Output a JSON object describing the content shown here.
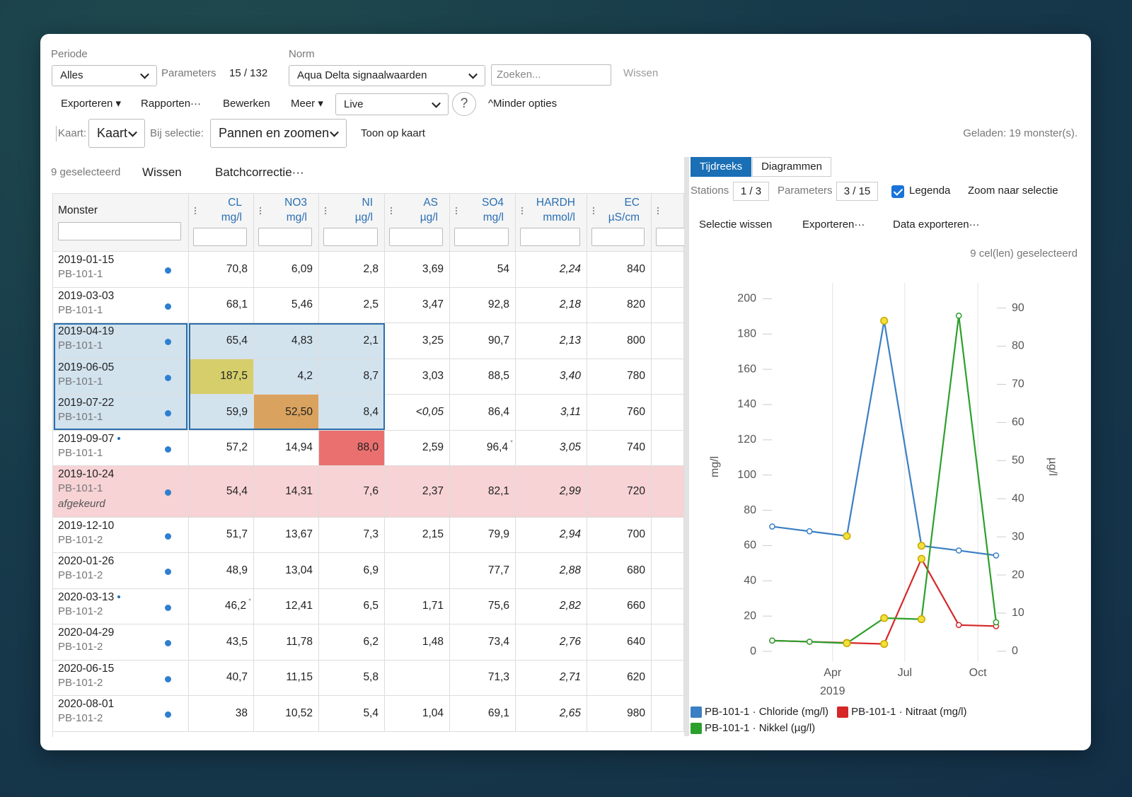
{
  "toolbar": {
    "periode_label": "Periode",
    "periode_value": "Alles",
    "parameters_label": "Parameters",
    "parameters_count": "15 / 132",
    "norm_label": "Norm",
    "norm_value": "Aqua Delta signaalwaarden",
    "search_placeholder": "Zoeken...",
    "search_clear": "Wissen",
    "menu": [
      "Exporteren ▾",
      "Rapporten···",
      "Bewerken",
      "Meer ▾"
    ],
    "mode": "Live",
    "help": "?",
    "less_options": "^Minder opties",
    "map_label": "Kaart:",
    "map_value": "Kaart",
    "selection_label": "Bij selectie:",
    "selection_value": "Pannen en zoomen",
    "show_on_map": "Toon op kaart",
    "loaded": "Geladen: 19 monster(s)."
  },
  "table_toolbar": {
    "selected": "9 geselecteerd",
    "clear": "Wissen",
    "batch": "Batchcorrectie···"
  },
  "table": {
    "first_column": "Monster",
    "columns": [
      {
        "name": "CL",
        "unit": "mg/l",
        "selected": true
      },
      {
        "name": "NO3",
        "unit": "mg/l",
        "selected": true
      },
      {
        "name": "NI",
        "unit": "µg/l",
        "selected": true
      },
      {
        "name": "AS",
        "unit": "µg/l"
      },
      {
        "name": "SO4",
        "unit": "mg/l"
      },
      {
        "name": "HARDH",
        "unit": "mmol/l",
        "italic": true
      },
      {
        "name": "EC",
        "unit": "µS/cm"
      }
    ],
    "rows": [
      {
        "date": "2019-01-15",
        "station": "PB-101-1",
        "cells": [
          "70,8",
          "6,09",
          "2,8",
          "3,69",
          "54",
          "2,24",
          "840"
        ]
      },
      {
        "date": "2019-03-03",
        "station": "PB-101-1",
        "cells": [
          "68,1",
          "5,46",
          "2,5",
          "3,47",
          "92,8",
          "2,18",
          "820"
        ]
      },
      {
        "date": "2019-04-19",
        "station": "PB-101-1",
        "selected": true,
        "cells": [
          "65,4",
          "4,83",
          "2,1",
          "3,25",
          "90,7",
          "2,13",
          "800"
        ]
      },
      {
        "date": "2019-06-05",
        "station": "PB-101-1",
        "selected": true,
        "cells": [
          {
            "text": "187,5",
            "status": "warn"
          },
          "4,2",
          "8,7",
          "3,03",
          "88,5",
          "3,40",
          "780"
        ]
      },
      {
        "date": "2019-07-22",
        "station": "PB-101-1",
        "selected": true,
        "cells": [
          "59,9",
          {
            "text": "52,50",
            "status": "alert"
          },
          "8,4",
          {
            "text": "<0,05",
            "italic": true
          },
          "86,4",
          "3,11",
          "760"
        ]
      },
      {
        "date": "2019-09-07",
        "station": "PB-101-1",
        "flagged": true,
        "cells": [
          "57,2",
          "14,94",
          {
            "text": "88,0",
            "status": "critical"
          },
          "2,59",
          {
            "text": "96,4",
            "mark": "*"
          },
          "3,05",
          "740"
        ]
      },
      {
        "date": "2019-10-24",
        "station": "PB-101-1",
        "status": "rejected",
        "note": "afgekeurd",
        "cells": [
          "54,4",
          "14,31",
          "7,6",
          "2,37",
          "82,1",
          "2,99",
          "720"
        ]
      },
      {
        "date": "2019-12-10",
        "station": "PB-101-2",
        "cells": [
          "51,7",
          "13,67",
          "7,3",
          "2,15",
          "79,9",
          "2,94",
          "700"
        ]
      },
      {
        "date": "2020-01-26",
        "station": "PB-101-2",
        "cells": [
          "48,9",
          "13,04",
          "6,9",
          null,
          "77,7",
          "2,88",
          "680"
        ]
      },
      {
        "date": "2020-03-13",
        "station": "PB-101-2",
        "flagged": true,
        "cells": [
          {
            "text": "46,2",
            "mark": "*"
          },
          "12,41",
          "6,5",
          "1,71",
          "75,6",
          "2,82",
          "660"
        ]
      },
      {
        "date": "2020-04-29",
        "station": "PB-101-2",
        "cells": [
          "43,5",
          "11,78",
          "6,2",
          "1,48",
          "73,4",
          "2,76",
          "640"
        ]
      },
      {
        "date": "2020-06-15",
        "station": "PB-101-2",
        "cells": [
          "40,7",
          "11,15",
          "5,8",
          null,
          "71,3",
          "2,71",
          "620"
        ]
      },
      {
        "date": "2020-08-01",
        "station": "PB-101-2",
        "cells": [
          "38",
          "10,52",
          "5,4",
          "1,04",
          "69,1",
          "2,65",
          "980"
        ]
      }
    ]
  },
  "panel": {
    "tabs": [
      "Tijdreeks",
      "Diagrammen"
    ],
    "active_tab": 0,
    "stations_label": "Stations",
    "stations_value": "1 / 3",
    "parameters_label": "Parameters",
    "parameters_value": "3 / 15",
    "legend_label": "Legenda",
    "legend_checked": true,
    "zoom": "Zoom naar selectie",
    "actions": [
      "Selectie wissen",
      "Exporteren···",
      "Data exporteren···"
    ],
    "selected_cells": "9 cel(len) geselecteerd"
  },
  "chart_data": {
    "type": "line",
    "x": [
      "2019-01-15",
      "2019-03-03",
      "2019-04-19",
      "2019-06-05",
      "2019-07-22",
      "2019-09-07",
      "2019-10-24"
    ],
    "xlim": [
      "2019-01-03",
      "2019-11-02"
    ],
    "xticks": [
      {
        "value": "2019-04-01",
        "label": "Apr"
      },
      {
        "value": "2019-07-01",
        "label": "Jul"
      },
      {
        "value": "2019-10-01",
        "label": "Oct"
      }
    ],
    "x_label": "2019",
    "y_label": "mg/l",
    "y2_label": "µg/l",
    "ylim": [
      -6,
      209
    ],
    "yticks": [
      0,
      20,
      40,
      60,
      80,
      100,
      120,
      140,
      160,
      180,
      200
    ],
    "y2lim": [
      -2.8,
      96.6
    ],
    "y2ticks": [
      0,
      10,
      20,
      30,
      40,
      50,
      60,
      70,
      80,
      90
    ],
    "grid": true,
    "legend": "bottom-left",
    "highlighted_points": [
      2,
      3,
      4
    ],
    "highlight_color": "#f2e03c",
    "series": [
      {
        "name": "PB-101-1 · Chloride (mg/l)",
        "color": "#3b7fc4",
        "values": [
          70.8,
          68.1,
          65.4,
          187.5,
          59.9,
          57.2,
          54.4
        ]
      },
      {
        "name": "PB-101-1 · Nitraat (mg/l)",
        "color": "#d62728",
        "values": [
          6.09,
          5.46,
          4.83,
          4.2,
          52.5,
          14.94,
          14.31
        ]
      },
      {
        "name": "PB-101-1 · Nikkel (µg/l)",
        "color": "#2ca02c",
        "axis": "y2",
        "values": [
          2.8,
          2.5,
          2.1,
          8.7,
          8.4,
          88.0,
          7.6
        ]
      }
    ]
  }
}
